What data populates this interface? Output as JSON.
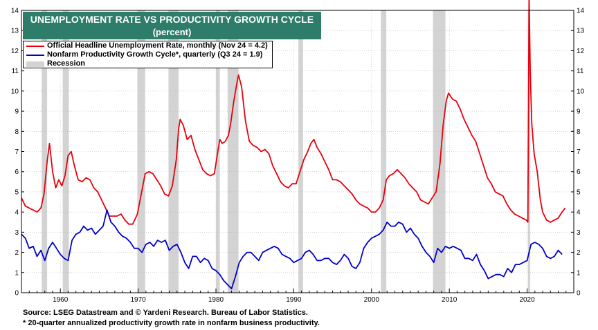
{
  "chart_data": {
    "type": "line",
    "title": "UNEMPLOYMENT RATE VS PRODUCTIVITY GROWTH CYCLE",
    "subtitle": "(percent)",
    "xlim": [
      1955,
      2026
    ],
    "ylim": [
      0,
      14
    ],
    "y_ticks": [
      0,
      1,
      2,
      3,
      4,
      5,
      6,
      7,
      8,
      9,
      10,
      11,
      12,
      13,
      14
    ],
    "x_ticks": [
      1960,
      1970,
      1980,
      1990,
      2000,
      2010,
      2020
    ],
    "grid": true,
    "legend_position": "top-left",
    "recession_label": "Recession",
    "recession_color": "#d3d3d3",
    "recessions": [
      [
        1957.6,
        1958.3
      ],
      [
        1960.3,
        1961.1
      ],
      [
        1969.9,
        1970.9
      ],
      [
        1973.9,
        1975.2
      ],
      [
        1980.0,
        1980.5
      ],
      [
        1981.5,
        1982.9
      ],
      [
        1990.6,
        1991.2
      ],
      [
        2001.2,
        2001.9
      ],
      [
        2007.9,
        2009.5
      ],
      [
        2020.1,
        2020.4
      ]
    ],
    "series": [
      {
        "name": "Official Headline Unemployment Rate, monthly (Nov 24 = 4.2)",
        "color": "#e8000b",
        "x": [
          1955.0,
          1955.5,
          1956.0,
          1956.5,
          1957.0,
          1957.5,
          1957.9,
          1958.3,
          1958.6,
          1959.0,
          1959.4,
          1959.8,
          1960.2,
          1960.6,
          1961.0,
          1961.4,
          1961.8,
          1962.3,
          1962.8,
          1963.3,
          1963.8,
          1964.3,
          1964.8,
          1965.3,
          1965.8,
          1966.3,
          1966.8,
          1967.3,
          1967.8,
          1968.3,
          1968.8,
          1969.3,
          1969.9,
          1970.4,
          1970.9,
          1971.4,
          1971.9,
          1972.4,
          1972.9,
          1973.4,
          1973.9,
          1974.4,
          1974.9,
          1975.2,
          1975.4,
          1975.8,
          1976.3,
          1976.8,
          1977.3,
          1977.8,
          1978.3,
          1978.8,
          1979.3,
          1979.8,
          1980.2,
          1980.5,
          1980.8,
          1981.2,
          1981.6,
          1981.9,
          1982.3,
          1982.7,
          1982.9,
          1983.3,
          1983.8,
          1984.3,
          1984.8,
          1985.3,
          1985.8,
          1986.3,
          1986.8,
          1987.3,
          1987.8,
          1988.3,
          1988.8,
          1989.3,
          1989.8,
          1990.3,
          1990.8,
          1991.3,
          1991.8,
          1992.2,
          1992.6,
          1993.0,
          1993.5,
          1994.0,
          1994.5,
          1995.0,
          1995.5,
          1996.0,
          1996.5,
          1997.0,
          1997.5,
          1998.0,
          1998.5,
          1999.0,
          1999.5,
          2000.0,
          2000.5,
          2001.0,
          2001.5,
          2001.9,
          2002.3,
          2002.8,
          2003.3,
          2003.8,
          2004.3,
          2004.8,
          2005.3,
          2005.8,
          2006.3,
          2006.8,
          2007.3,
          2007.8,
          2008.3,
          2008.8,
          2009.2,
          2009.6,
          2009.9,
          2010.4,
          2010.9,
          2011.4,
          2011.9,
          2012.4,
          2012.9,
          2013.4,
          2013.9,
          2014.4,
          2014.9,
          2015.4,
          2015.9,
          2016.4,
          2016.9,
          2017.4,
          2017.9,
          2018.4,
          2018.9,
          2019.4,
          2019.9,
          2020.1,
          2020.25,
          2020.4,
          2020.6,
          2020.9,
          2021.3,
          2021.7,
          2022.0,
          2022.5,
          2023.0,
          2023.5,
          2024.0,
          2024.5,
          2024.9
        ],
        "values": [
          4.7,
          4.3,
          4.2,
          4.1,
          4.0,
          4.2,
          4.9,
          6.5,
          7.4,
          6.0,
          5.2,
          5.6,
          5.3,
          5.8,
          6.8,
          7.0,
          6.3,
          5.6,
          5.5,
          5.7,
          5.6,
          5.2,
          5.0,
          4.6,
          4.2,
          3.8,
          3.8,
          3.8,
          3.9,
          3.6,
          3.4,
          3.4,
          3.9,
          4.9,
          5.9,
          6.0,
          5.9,
          5.6,
          5.3,
          4.9,
          4.8,
          5.3,
          6.6,
          8.1,
          8.6,
          8.3,
          7.6,
          7.8,
          7.1,
          6.6,
          6.1,
          5.9,
          5.8,
          5.9,
          6.9,
          7.6,
          7.4,
          7.5,
          7.8,
          8.4,
          9.5,
          10.4,
          10.8,
          10.2,
          8.5,
          7.5,
          7.3,
          7.2,
          7.0,
          7.1,
          6.9,
          6.3,
          5.9,
          5.5,
          5.3,
          5.2,
          5.4,
          5.4,
          6.0,
          6.6,
          7.0,
          7.4,
          7.6,
          7.2,
          6.9,
          6.5,
          6.1,
          5.6,
          5.6,
          5.5,
          5.3,
          5.1,
          4.9,
          4.6,
          4.4,
          4.3,
          4.2,
          4.0,
          4.0,
          4.2,
          4.6,
          5.6,
          5.8,
          5.9,
          6.1,
          5.9,
          5.7,
          5.4,
          5.2,
          5.0,
          4.6,
          4.5,
          4.4,
          4.7,
          5.0,
          6.4,
          8.3,
          9.5,
          9.9,
          9.6,
          9.5,
          9.1,
          8.6,
          8.2,
          7.8,
          7.5,
          6.9,
          6.3,
          5.7,
          5.4,
          5.0,
          4.9,
          4.8,
          4.4,
          4.1,
          3.9,
          3.8,
          3.7,
          3.6,
          3.5,
          14.7,
          11.0,
          8.4,
          6.9,
          6.0,
          4.6,
          4.0,
          3.6,
          3.5,
          3.6,
          3.7,
          4.0,
          4.2
        ]
      },
      {
        "name": "Nonfarm Productivity Growth Cycle*, quarterly (Q3 24 = 1.9)",
        "color": "#0000cd",
        "x": [
          1955.0,
          1955.5,
          1956.0,
          1956.5,
          1957.0,
          1957.5,
          1958.0,
          1958.5,
          1959.0,
          1959.5,
          1960.0,
          1960.5,
          1961.0,
          1961.5,
          1962.0,
          1962.5,
          1963.0,
          1963.5,
          1964.0,
          1964.5,
          1965.0,
          1965.5,
          1966.0,
          1966.5,
          1967.0,
          1967.5,
          1968.0,
          1968.5,
          1969.0,
          1969.5,
          1970.0,
          1970.5,
          1971.0,
          1971.5,
          1972.0,
          1972.5,
          1973.0,
          1973.5,
          1974.0,
          1974.5,
          1975.0,
          1975.5,
          1976.0,
          1976.5,
          1977.0,
          1977.5,
          1978.0,
          1978.5,
          1979.0,
          1979.5,
          1980.0,
          1980.5,
          1981.0,
          1981.5,
          1982.0,
          1982.5,
          1983.0,
          1983.5,
          1984.0,
          1984.5,
          1985.0,
          1985.5,
          1986.0,
          1986.5,
          1987.0,
          1987.5,
          1988.0,
          1988.5,
          1989.0,
          1989.5,
          1990.0,
          1990.5,
          1991.0,
          1991.5,
          1992.0,
          1992.5,
          1993.0,
          1993.5,
          1994.0,
          1994.5,
          1995.0,
          1995.5,
          1996.0,
          1996.5,
          1997.0,
          1997.5,
          1998.0,
          1998.5,
          1999.0,
          1999.5,
          2000.0,
          2000.5,
          2001.0,
          2001.5,
          2002.0,
          2002.5,
          2003.0,
          2003.5,
          2004.0,
          2004.5,
          2005.0,
          2005.5,
          2006.0,
          2006.5,
          2007.0,
          2007.5,
          2008.0,
          2008.5,
          2009.0,
          2009.5,
          2010.0,
          2010.5,
          2011.0,
          2011.5,
          2012.0,
          2012.5,
          2013.0,
          2013.5,
          2014.0,
          2014.5,
          2015.0,
          2015.5,
          2016.0,
          2016.5,
          2017.0,
          2017.5,
          2018.0,
          2018.5,
          2019.0,
          2019.5,
          2020.0,
          2020.5,
          2021.0,
          2021.5,
          2022.0,
          2022.5,
          2023.0,
          2023.5,
          2024.0,
          2024.5
        ],
        "values": [
          2.9,
          2.7,
          2.2,
          2.3,
          1.8,
          2.1,
          1.6,
          2.2,
          2.5,
          2.2,
          1.9,
          1.7,
          1.6,
          2.6,
          2.9,
          3.0,
          3.3,
          3.1,
          3.2,
          2.9,
          3.1,
          3.3,
          4.1,
          3.5,
          3.3,
          3.0,
          2.8,
          2.7,
          2.5,
          2.2,
          2.2,
          2.0,
          2.4,
          2.5,
          2.3,
          2.6,
          2.5,
          2.6,
          2.1,
          2.3,
          2.4,
          2.0,
          1.5,
          1.2,
          1.8,
          1.8,
          1.5,
          1.7,
          1.6,
          1.2,
          1.1,
          0.9,
          0.6,
          0.4,
          0.2,
          0.8,
          1.5,
          1.8,
          2.0,
          2.0,
          1.8,
          1.6,
          2.0,
          2.1,
          2.2,
          2.3,
          2.2,
          1.9,
          1.8,
          1.7,
          1.5,
          1.6,
          1.7,
          2.0,
          2.1,
          1.9,
          1.6,
          1.6,
          1.7,
          1.7,
          1.5,
          1.4,
          1.6,
          1.9,
          1.7,
          1.3,
          1.2,
          1.5,
          2.2,
          2.5,
          2.7,
          2.8,
          2.9,
          3.1,
          3.5,
          3.3,
          3.3,
          3.5,
          3.4,
          3.0,
          3.2,
          2.9,
          2.7,
          2.3,
          2.0,
          1.8,
          1.5,
          2.2,
          2.0,
          2.3,
          2.2,
          2.3,
          2.2,
          2.1,
          1.7,
          1.7,
          1.6,
          1.9,
          1.4,
          1.1,
          0.7,
          0.8,
          0.9,
          0.9,
          0.8,
          1.2,
          1.0,
          1.4,
          1.4,
          1.5,
          1.6,
          2.4,
          2.5,
          2.4,
          2.2,
          1.8,
          1.7,
          1.8,
          2.1,
          1.9
        ]
      }
    ]
  },
  "source_line": "Source: LSEG Datastream and © Yardeni Research. Bureau of Labor Statistics.",
  "footnote_line": "* 20-quarter annualized productivity growth rate in nonfarm business productivity."
}
